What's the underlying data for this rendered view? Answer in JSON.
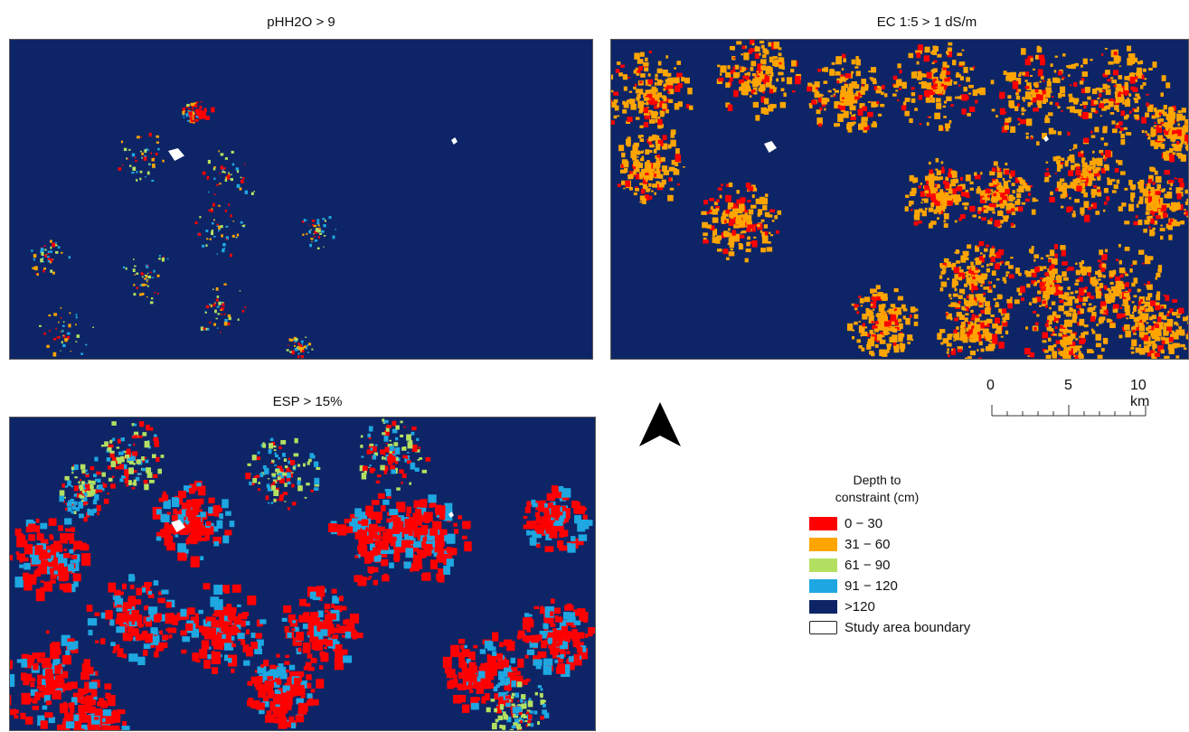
{
  "panels": [
    {
      "title": "pHH2O > 9"
    },
    {
      "title": "EC 1:5 > 1 dS/m"
    },
    {
      "title": "ESP > 15%"
    }
  ],
  "colors": {
    "c0_30": "#ff0000",
    "c31_60": "#ffa500",
    "c61_90": "#b4e061",
    "c91_120": "#1ea7e1",
    "c120": "#0d2566",
    "boundary": "#ffffff"
  },
  "scale_bar": {
    "labels": [
      "0",
      "5",
      "10 km"
    ]
  },
  "north_arrow": {
    "icon": "north-arrow-icon"
  },
  "legend": {
    "title_line1": "Depth to",
    "title_line2": "constraint (cm)",
    "items": [
      {
        "label": "0 − 30",
        "color": "#ff0000"
      },
      {
        "label": "31 − 60",
        "color": "#ffa500"
      },
      {
        "label": "61 − 90",
        "color": "#b4e061"
      },
      {
        "label": "91 − 120",
        "color": "#1ea7e1"
      },
      {
        "label": ">120",
        "color": "#0d2566"
      },
      {
        "label": "Study area boundary",
        "color": "#ffffff"
      }
    ]
  }
}
